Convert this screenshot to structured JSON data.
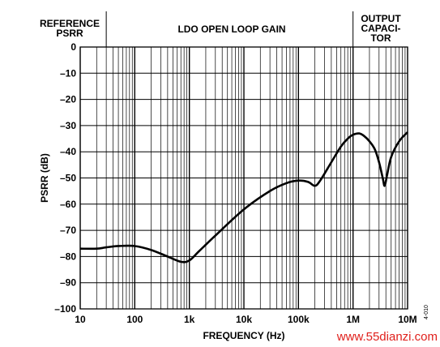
{
  "chart_data": {
    "type": "line",
    "xlabel": "FREQUENCY (Hz)",
    "ylabel": "PSRR (dB)",
    "x_scale": "log",
    "xlim": [
      10,
      10000000
    ],
    "ylim": [
      -100,
      0
    ],
    "grid": true,
    "x_ticks": [
      {
        "value": 10,
        "label": "10"
      },
      {
        "value": 100,
        "label": "100"
      },
      {
        "value": 1000,
        "label": "1k"
      },
      {
        "value": 10000,
        "label": "10k"
      },
      {
        "value": 100000,
        "label": "100k"
      },
      {
        "value": 1000000,
        "label": "1M"
      },
      {
        "value": 10000000,
        "label": "10M"
      }
    ],
    "y_ticks": [
      0,
      -10,
      -20,
      -30,
      -40,
      -50,
      -60,
      -70,
      -80,
      -90,
      -100
    ],
    "regions": [
      {
        "lines": [
          "REFERENCE",
          "PSRR"
        ],
        "from": 10,
        "to": 30
      },
      {
        "lines": [
          "LDO OPEN LOOP GAIN"
        ],
        "from": 30,
        "to": 1000000
      },
      {
        "lines": [
          "OUTPUT",
          "CAPACI-",
          "TOR"
        ],
        "from": 1000000,
        "to": 10000000
      }
    ],
    "series": [
      {
        "color": "#000000",
        "points": [
          [
            10,
            -77
          ],
          [
            20,
            -77
          ],
          [
            30,
            -76.5
          ],
          [
            50,
            -76
          ],
          [
            100,
            -76
          ],
          [
            200,
            -77.5
          ],
          [
            400,
            -80
          ],
          [
            700,
            -82
          ],
          [
            1000,
            -81.5
          ],
          [
            1500,
            -78
          ],
          [
            3000,
            -72
          ],
          [
            10000,
            -62
          ],
          [
            30000,
            -55
          ],
          [
            60000,
            -52
          ],
          [
            100000,
            -51
          ],
          [
            150000,
            -51.5
          ],
          [
            200000,
            -53
          ],
          [
            250000,
            -51
          ],
          [
            400000,
            -44
          ],
          [
            600000,
            -38
          ],
          [
            800000,
            -35
          ],
          [
            1000000,
            -33.5
          ],
          [
            1300000,
            -33
          ],
          [
            1600000,
            -34
          ],
          [
            2000000,
            -36
          ],
          [
            2500000,
            -39
          ],
          [
            3000000,
            -44
          ],
          [
            3500000,
            -50
          ],
          [
            3800000,
            -53
          ],
          [
            4200000,
            -49
          ],
          [
            5000000,
            -42
          ],
          [
            7000000,
            -36
          ],
          [
            10000000,
            -32.5
          ]
        ]
      }
    ]
  },
  "figure_id": "4-010",
  "watermark": "www.55dianzi.com"
}
